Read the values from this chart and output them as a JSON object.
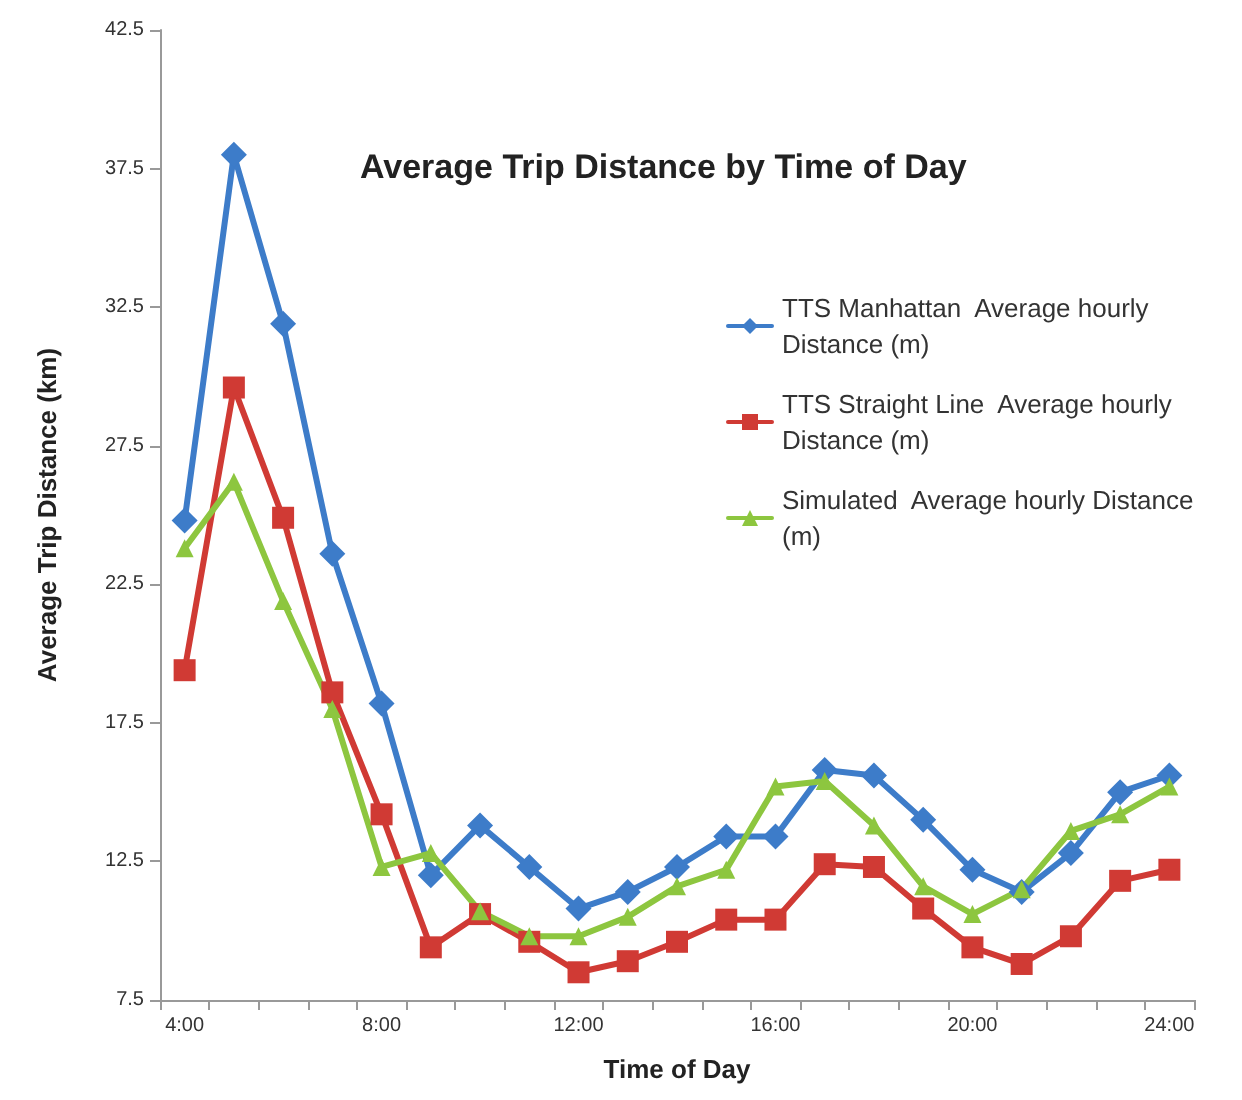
{
  "chart_data": {
    "type": "line",
    "title": "Average Trip Distance by Time of Day",
    "xlabel": "Time of Day",
    "ylabel": "Average Trip Distance (km)",
    "categories": [
      "4:00",
      null,
      null,
      null,
      "8:00",
      null,
      null,
      null,
      "12:00",
      null,
      null,
      null,
      "16:00",
      null,
      null,
      null,
      "20:00",
      null,
      null,
      null,
      "24:00"
    ],
    "series": [
      {
        "name": "TTS Manhattan  Average hourly Distance (m)",
        "color": "#3d7cc9",
        "marker": "diamond",
        "values": [
          24.8,
          38.0,
          31.9,
          23.6,
          18.2,
          12.0,
          13.8,
          12.3,
          10.8,
          11.4,
          12.3,
          13.4,
          13.4,
          15.8,
          15.6,
          14.0,
          12.2,
          11.4,
          12.8,
          15.0,
          15.6
        ]
      },
      {
        "name": "TTS Straight Line  Average hourly Distance (m)",
        "color": "#d03a34",
        "marker": "square",
        "values": [
          19.4,
          29.6,
          24.9,
          18.6,
          14.2,
          9.4,
          10.6,
          9.6,
          8.5,
          8.9,
          9.6,
          10.4,
          10.4,
          12.4,
          12.3,
          10.8,
          9.4,
          8.8,
          9.8,
          11.8,
          12.2
        ]
      },
      {
        "name": "Simulated  Average hourly Distance (m)",
        "color": "#8dc63f",
        "marker": "triangle",
        "values": [
          23.8,
          26.2,
          21.9,
          18.0,
          12.3,
          12.8,
          10.7,
          9.8,
          9.8,
          10.5,
          11.6,
          12.2,
          15.2,
          15.4,
          13.8,
          11.6,
          10.6,
          11.5,
          13.6,
          14.2,
          15.2
        ]
      }
    ],
    "ylim": [
      7.5,
      42.5
    ],
    "yticks": [
      7.5,
      12.5,
      17.5,
      22.5,
      27.5,
      32.5,
      37.5,
      42.5
    ],
    "grid": false,
    "legend": "right",
    "line_style": "solid"
  }
}
